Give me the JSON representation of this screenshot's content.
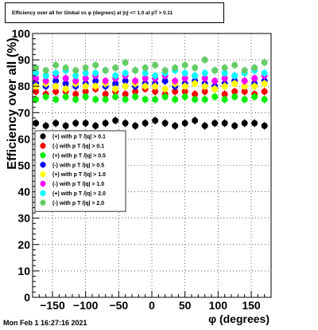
{
  "title": "Efficiency over all for Global vs φ (degrees) at |η| <= 1.0 at pT > 0.11",
  "timestamp": "Mon Feb  1 16:27:16 2021",
  "chart_data": {
    "type": "scatter",
    "title": "Efficiency over all for Global vs φ (degrees) at |η| <= 1.0 at pT > 0.11",
    "xlabel": "φ (degrees)",
    "ylabel": "Efficiency over all (%)",
    "xlim": [
      -180,
      180
    ],
    "ylim": [
      0,
      100
    ],
    "xticks": [
      -150,
      -100,
      -50,
      0,
      50,
      100,
      150
    ],
    "xtick_labels": [
      "−150",
      "−100",
      "−50",
      "0",
      "50",
      "100",
      "150"
    ],
    "yticks": [
      0,
      10,
      20,
      30,
      40,
      50,
      60,
      70,
      80,
      90,
      100
    ],
    "grid": true,
    "legend_position": "center-left",
    "x_points": [
      -175,
      -160,
      -145,
      -130,
      -115,
      -100,
      -85,
      -70,
      -55,
      -40,
      -25,
      -10,
      5,
      20,
      35,
      50,
      65,
      80,
      95,
      110,
      125,
      140,
      155,
      170
    ],
    "series": [
      {
        "name": "(+) with p T /|q| > 0.1",
        "color": "#000000",
        "values": [
          66,
          65,
          66,
          65,
          66,
          66,
          65,
          66,
          67,
          66,
          65,
          66,
          67,
          66,
          65,
          66,
          67,
          65,
          66,
          66,
          65,
          66,
          66,
          65
        ]
      },
      {
        "name": "(-) with p T /|q| > 0.1",
        "color": "#ff0000",
        "values": [
          78,
          77,
          78,
          78,
          77,
          78,
          79,
          77,
          78,
          77,
          78,
          79,
          78,
          77,
          78,
          78,
          77,
          78,
          79,
          77,
          78,
          78,
          77,
          78
        ]
      },
      {
        "name": "(+) with p T /|q| > 0.5",
        "color": "#00ee00",
        "values": [
          75,
          76,
          75,
          76,
          75,
          76,
          75,
          75,
          76,
          75,
          76,
          75,
          75,
          76,
          75,
          76,
          75,
          75,
          76,
          75,
          76,
          75,
          76,
          75
        ]
      },
      {
        "name": "(-) with p T /|q| > 0.5",
        "color": "#0000ff",
        "values": [
          81,
          80,
          82,
          81,
          80,
          81,
          82,
          80,
          81,
          82,
          80,
          81,
          81,
          82,
          80,
          81,
          82,
          81,
          80,
          81,
          82,
          80,
          81,
          82
        ]
      },
      {
        "name": "(+) with p T /|q| > 1.0",
        "color": "#ffff00",
        "values": [
          80,
          81,
          80,
          79,
          81,
          80,
          80,
          81,
          79,
          80,
          81,
          80,
          80,
          79,
          81,
          80,
          81,
          80,
          79,
          80,
          81,
          80,
          80,
          81
        ]
      },
      {
        "name": "(-) with p T /|q| > 1.0",
        "color": "#ff00ff",
        "values": [
          83,
          82,
          84,
          83,
          82,
          83,
          84,
          82,
          83,
          84,
          82,
          83,
          83,
          84,
          82,
          83,
          84,
          83,
          82,
          83,
          84,
          82,
          83,
          84
        ]
      },
      {
        "name": "(+) with p T /|q| > 2.0",
        "color": "#00ffff",
        "values": [
          85,
          84,
          85,
          86,
          84,
          85,
          85,
          86,
          84,
          85,
          86,
          85,
          84,
          85,
          86,
          85,
          84,
          85,
          86,
          85,
          84,
          85,
          86,
          85
        ]
      },
      {
        "name": "(-) with p T /|q| > 2.0",
        "color": "#66cc66",
        "values": [
          87,
          86,
          88,
          87,
          86,
          87,
          88,
          86,
          87,
          89,
          86,
          87,
          88,
          86,
          87,
          88,
          87,
          90,
          86,
          87,
          88,
          86,
          87,
          89
        ]
      }
    ]
  }
}
